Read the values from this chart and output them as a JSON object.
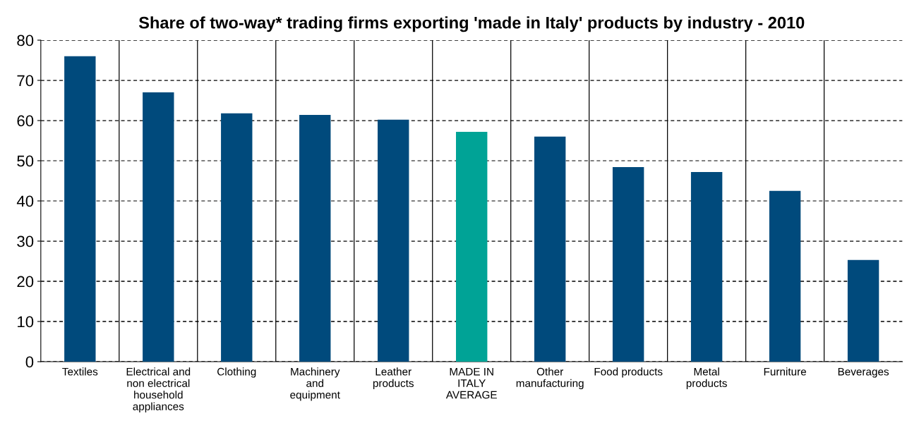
{
  "chart_data": {
    "type": "bar",
    "title": "Share of two-way* trading firms exporting 'made in Italy' products by industry - 2010",
    "categories": [
      "Textiles",
      "Electrical and\nnon electrical\nhousehold\nappliances",
      "Clothing",
      "Machinery\nand\nequipment",
      "Leather\nproducts",
      "MADE IN\nITALY\nAVERAGE",
      "Other\nmanufacturing",
      "Food products",
      "Metal\nproducts",
      "Furniture",
      "Beverages"
    ],
    "values": [
      76.0,
      67.0,
      61.8,
      61.4,
      60.2,
      57.2,
      56.0,
      48.4,
      47.2,
      42.5,
      25.3
    ],
    "colors": [
      "#004a7c",
      "#004a7c",
      "#004a7c",
      "#004a7c",
      "#004a7c",
      "#00a396",
      "#004a7c",
      "#004a7c",
      "#004a7c",
      "#004a7c",
      "#004a7c"
    ],
    "ylim": [
      0,
      80
    ],
    "yticks": [
      0,
      10,
      20,
      30,
      40,
      50,
      60,
      70,
      80
    ],
    "grid": true
  }
}
